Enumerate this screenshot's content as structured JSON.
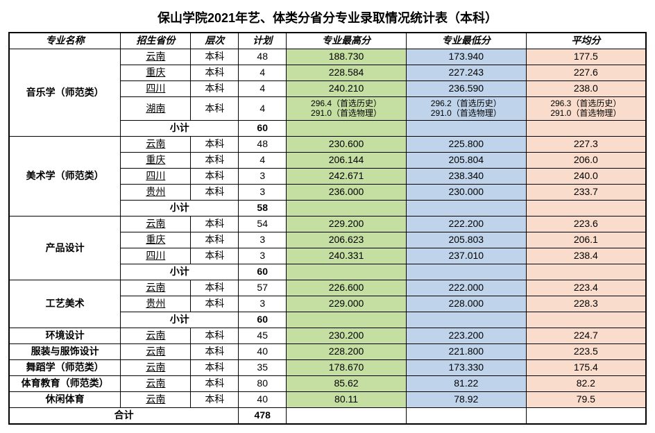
{
  "title": "保山学院2021年艺、体类分省分专业录取情况统计表（本科）",
  "headers": {
    "major": "专业名称",
    "province": "招生省份",
    "level": "层次",
    "plan": "计划",
    "max": "专业最高分",
    "min": "专业最低分",
    "avg": "平均分"
  },
  "labels": {
    "subtotal": "小计",
    "total": "合计",
    "benke": "本科"
  },
  "colors": {
    "max_bg": "#c5dea1",
    "min_bg": "#bfd4eb",
    "avg_bg": "#f9dccb"
  },
  "column_widths_pct": [
    17.5,
    11,
    7.5,
    7.5,
    18.8,
    18.8,
    18.8
  ],
  "groups": [
    {
      "major": "音乐学（师范类）",
      "rows": [
        {
          "province": "云南",
          "plan": "48",
          "max": "188.730",
          "min": "173.940",
          "avg": "177.5"
        },
        {
          "province": "重庆",
          "plan": "4",
          "max": "228.584",
          "min": "227.243",
          "avg": "227.6"
        },
        {
          "province": "四川",
          "plan": "4",
          "max": "240.210",
          "min": "236.590",
          "avg": "238.0"
        },
        {
          "province": "湖南",
          "plan": "4",
          "max": "296.4（首选历史）\n291.0（首选物理）",
          "min": "296.2（首选历史）\n291.0（首选物理）",
          "avg": "296.3（首选历史）\n291.0（首选物理）",
          "multi": true
        }
      ],
      "subtotal_plan": "60"
    },
    {
      "major": "美术学（师范类）",
      "rows": [
        {
          "province": "云南",
          "plan": "48",
          "max": "230.600",
          "min": "225.800",
          "avg": "227.3"
        },
        {
          "province": "重庆",
          "plan": "4",
          "max": "206.144",
          "min": "205.804",
          "avg": "206.0"
        },
        {
          "province": "四川",
          "plan": "3",
          "max": "242.671",
          "min": "238.340",
          "avg": "240.0"
        },
        {
          "province": "贵州",
          "plan": "3",
          "max": "236.000",
          "min": "230.000",
          "avg": "233.7"
        }
      ],
      "subtotal_plan": "58"
    },
    {
      "major": "产品设计",
      "rows": [
        {
          "province": "云南",
          "plan": "54",
          "max": "229.200",
          "min": "222.200",
          "avg": "223.6"
        },
        {
          "province": "重庆",
          "plan": "3",
          "max": "206.623",
          "min": "205.803",
          "avg": "206.1"
        },
        {
          "province": "四川",
          "plan": "3",
          "max": "240.331",
          "min": "237.010",
          "avg": "238.4"
        }
      ],
      "subtotal_plan": "60"
    },
    {
      "major": "工艺美术",
      "rows": [
        {
          "province": "云南",
          "plan": "57",
          "max": "226.600",
          "min": "222.000",
          "avg": "223.4"
        },
        {
          "province": "贵州",
          "plan": "3",
          "max": "229.000",
          "min": "228.000",
          "avg": "228.3"
        }
      ],
      "subtotal_plan": "60"
    }
  ],
  "singles": [
    {
      "major": "环境设计",
      "province": "云南",
      "plan": "45",
      "max": "230.200",
      "min": "223.200",
      "avg": "224.7"
    },
    {
      "major": "服装与服饰设计",
      "province": "云南",
      "plan": "40",
      "max": "228.200",
      "min": "221.800",
      "avg": "223.5"
    },
    {
      "major": "舞蹈学（师范类）",
      "province": "云南",
      "plan": "35",
      "max": "178.670",
      "min": "173.330",
      "avg": "175.4"
    },
    {
      "major": "体育教育（师范类）",
      "province": "云南",
      "plan": "80",
      "max": "85.62",
      "min": "81.22",
      "avg": "82.2"
    },
    {
      "major": "休闲体育",
      "province": "云南",
      "plan": "40",
      "max": "80.11",
      "min": "78.92",
      "avg": "79.5"
    }
  ],
  "grand_total_plan": "478"
}
